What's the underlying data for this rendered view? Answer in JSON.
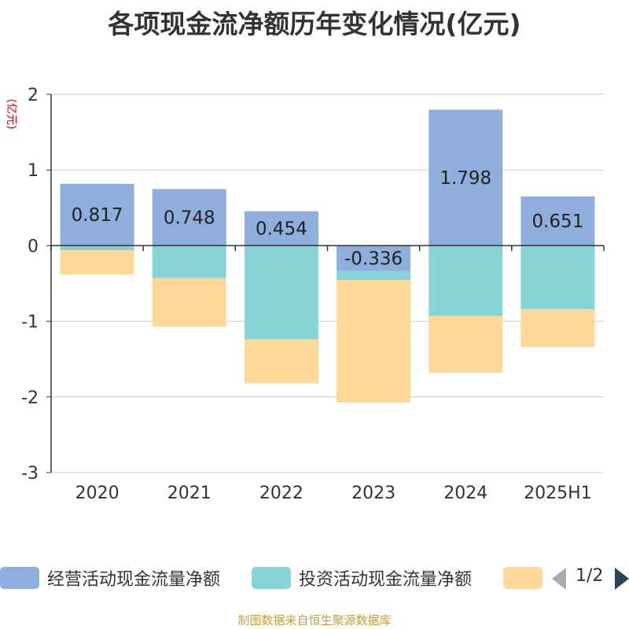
{
  "title": "各项现金流净额历年变化情况(亿元)",
  "source": "制图数据来自恒生聚源数据库",
  "pager": "1/2",
  "colors": {
    "operating": "#8eaedb",
    "investing": "#86d4d8",
    "financing": "#fdd899",
    "axis": "#333333",
    "grid": "#cccccc",
    "unit": "#e00000"
  },
  "chart_data": {
    "type": "bar",
    "stacked": true,
    "unit_label": "(亿元)",
    "categories": [
      "2020",
      "2021",
      "2022",
      "2023",
      "2024",
      "2025H1"
    ],
    "ylim": [
      -3,
      2
    ],
    "yticks": [
      2,
      1,
      0,
      -1,
      -2,
      -3
    ],
    "series": [
      {
        "name": "经营活动现金流量净额",
        "values": [
          0.817,
          0.748,
          0.454,
          -0.336,
          1.798,
          0.651
        ],
        "labels": [
          "0.817",
          "0.748",
          "0.454",
          "-0.336",
          "1.798",
          "0.651"
        ]
      },
      {
        "name": "投资活动现金流量净额",
        "values": [
          -0.06,
          -0.43,
          -1.24,
          -0.12,
          -0.93,
          -0.84
        ]
      },
      {
        "name": "",
        "values": [
          -0.32,
          -0.64,
          -0.58,
          -1.62,
          -0.75,
          -0.5
        ]
      }
    ],
    "legend_position": "bottom",
    "grid": true
  }
}
